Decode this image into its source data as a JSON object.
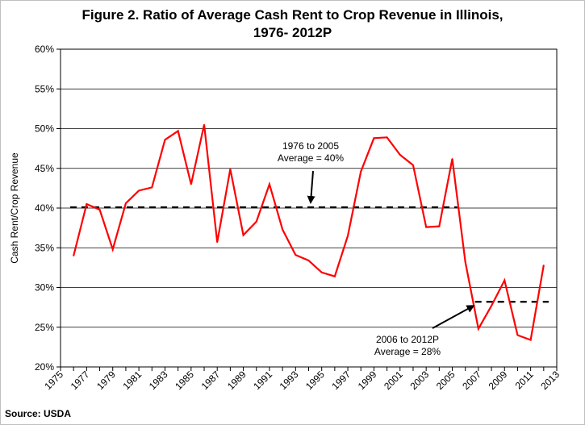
{
  "title_line1": "Figure 2. Ratio of Average Cash Rent to Crop Revenue in Illinois,",
  "title_line2": "1976- 2012P",
  "source": "Source: USDA",
  "chart_data": {
    "type": "line",
    "title": "Figure 2. Ratio of Average Cash Rent to Crop Revenue in Illinois, 1976- 2012P",
    "xlabel": "",
    "ylabel": "Cash Rent/Crop Revenue",
    "xlim": [
      1975,
      2013
    ],
    "ylim": [
      20,
      60
    ],
    "x_ticks": [
      "1975",
      "1977",
      "1979",
      "1981",
      "1983",
      "1985",
      "1987",
      "1989",
      "1991",
      "1993",
      "1995",
      "1997",
      "1999",
      "2001",
      "2003",
      "2005",
      "2007",
      "2009",
      "2011",
      "2013"
    ],
    "y_ticks": [
      "20%",
      "25%",
      "30%",
      "35%",
      "40%",
      "45%",
      "50%",
      "55%",
      "60%"
    ],
    "grid": "horizontal",
    "series": [
      {
        "color": "#ff0000",
        "x": [
          1976,
          1977,
          1978,
          1979,
          1980,
          1981,
          1982,
          1983,
          1984,
          1985,
          1986,
          1987,
          1988,
          1989,
          1990,
          1991,
          1992,
          1993,
          1994,
          1995,
          1996,
          1997,
          1998,
          1999,
          2000,
          2001,
          2002,
          2003,
          2004,
          2005,
          2006,
          2007,
          2008,
          2009,
          2010,
          2011,
          2012
        ],
        "y": [
          34.0,
          40.5,
          39.8,
          34.8,
          40.6,
          42.2,
          42.6,
          48.6,
          49.7,
          43.0,
          50.5,
          35.7,
          44.9,
          36.6,
          38.3,
          43.0,
          37.3,
          34.1,
          33.4,
          31.9,
          31.4,
          36.5,
          44.6,
          48.8,
          48.9,
          46.7,
          45.4,
          37.6,
          37.7,
          46.2,
          33.2,
          24.8,
          27.7,
          30.9,
          24.0,
          23.4,
          32.8
        ]
      }
    ],
    "averages": [
      {
        "label_line1": "1976 to 2005",
        "label_line2": "Average = 40%",
        "value": 40.1,
        "x_start": 1975,
        "x_end": 2006
      },
      {
        "label_line1": "2006 to 2012P",
        "label_line2": "Average = 28%",
        "value": 28.2,
        "x_start": 2006,
        "x_end": 2013
      }
    ]
  }
}
